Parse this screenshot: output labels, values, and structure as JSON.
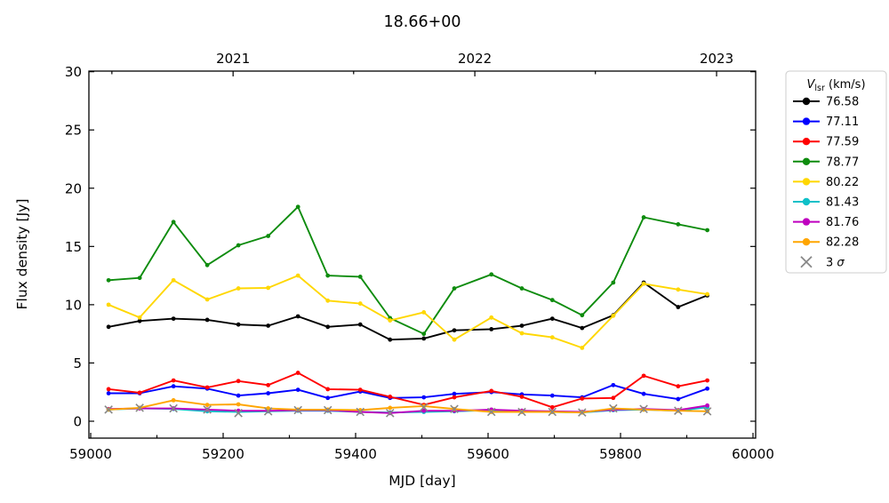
{
  "chart_data": {
    "type": "line",
    "title": "18.66+00",
    "xlabel": "MJD [day]",
    "ylabel": "Flux density [Jy]",
    "xlim": [
      58997.3,
      60004.0
    ],
    "ylim": [
      -1.45,
      30.05
    ],
    "grid": false,
    "legend_position": "outside-right",
    "axes": {
      "x_major": [
        59000,
        59200,
        59400,
        59600,
        59800,
        60000
      ],
      "x_minor": [
        59100,
        59300,
        59500,
        59700,
        59900
      ],
      "y_major": [
        0,
        5,
        10,
        15,
        20,
        25,
        30
      ],
      "top_major": [
        {
          "value": 59215,
          "label": "2021"
        },
        {
          "value": 59580,
          "label": "2022"
        },
        {
          "value": 59945,
          "label": "2023"
        }
      ],
      "top_minor": [
        59032,
        59397,
        59762
      ]
    },
    "x": [
      59027,
      59074,
      59125,
      59176,
      59223,
      59268,
      59313,
      59358,
      59407,
      59452,
      59503,
      59549,
      59605,
      59651,
      59697,
      59742,
      59789,
      59835,
      59887,
      59931
    ],
    "series": [
      {
        "name": "76.58",
        "color": "#000000",
        "values": [
          8.1,
          8.6,
          8.8,
          8.7,
          8.3,
          8.2,
          9.0,
          8.1,
          8.3,
          7.0,
          7.1,
          7.8,
          7.9,
          8.2,
          8.8,
          8.0,
          9.1,
          11.9,
          9.8,
          10.8
        ]
      },
      {
        "name": "77.11",
        "color": "#0000ff",
        "values": [
          2.4,
          2.4,
          3.0,
          2.8,
          2.2,
          2.4,
          2.7,
          2.0,
          2.55,
          2.0,
          2.05,
          2.35,
          2.5,
          2.3,
          2.2,
          2.05,
          3.1,
          2.35,
          1.9,
          2.8
        ]
      },
      {
        "name": "77.59",
        "color": "#ff0000",
        "values": [
          2.75,
          2.45,
          3.5,
          2.9,
          3.45,
          3.1,
          4.15,
          2.75,
          2.7,
          2.1,
          1.4,
          2.05,
          2.6,
          2.1,
          1.2,
          1.95,
          2.0,
          3.9,
          3.0,
          3.5
        ]
      },
      {
        "name": "78.77",
        "color": "#0e8c0e",
        "values": [
          12.1,
          12.3,
          17.1,
          13.4,
          15.1,
          15.9,
          18.4,
          12.5,
          12.4,
          8.85,
          7.5,
          11.4,
          12.6,
          11.4,
          10.4,
          9.1,
          11.9,
          17.5,
          16.9,
          16.4
        ]
      },
      {
        "name": "80.22",
        "color": "#ffd700",
        "values": [
          10.0,
          8.9,
          12.1,
          10.45,
          11.4,
          11.45,
          12.5,
          10.35,
          10.1,
          8.65,
          9.35,
          7.0,
          8.9,
          7.55,
          7.2,
          6.3,
          9.05,
          11.8,
          11.3,
          10.9
        ]
      },
      {
        "name": "81.43",
        "color": "#0fc0c8",
        "values": [
          1.0,
          1.1,
          1.05,
          0.85,
          0.8,
          0.85,
          0.9,
          0.9,
          0.8,
          0.75,
          0.8,
          0.85,
          0.95,
          0.85,
          0.8,
          0.75,
          0.95,
          1.0,
          0.9,
          1.2
        ]
      },
      {
        "name": "81.76",
        "color": "#bf00bf",
        "values": [
          1.05,
          1.1,
          1.1,
          1.0,
          0.9,
          0.9,
          0.95,
          0.95,
          0.8,
          0.7,
          0.9,
          0.9,
          1.0,
          0.9,
          0.85,
          0.8,
          1.0,
          1.05,
          0.95,
          1.35
        ]
      },
      {
        "name": "82.28",
        "color": "#ffa500",
        "values": [
          1.0,
          1.15,
          1.8,
          1.4,
          1.45,
          1.1,
          1.0,
          1.0,
          0.95,
          1.15,
          1.3,
          1.05,
          0.8,
          0.8,
          0.8,
          0.75,
          1.1,
          1.0,
          0.9,
          0.85
        ]
      }
    ],
    "sigma3": {
      "color": "#878787",
      "values": [
        1.0,
        1.15,
        1.1,
        1.0,
        0.7,
        0.85,
        0.95,
        0.95,
        0.8,
        0.7,
        1.2,
        1.05,
        0.8,
        0.8,
        0.8,
        0.75,
        1.1,
        1.05,
        0.9,
        0.85
      ]
    }
  },
  "legend": {
    "title_v": "V",
    "title_sub": "lsr",
    "title_units": " (km/s)",
    "sigma_prefix": "3 ",
    "sigma_symbol": "σ"
  }
}
